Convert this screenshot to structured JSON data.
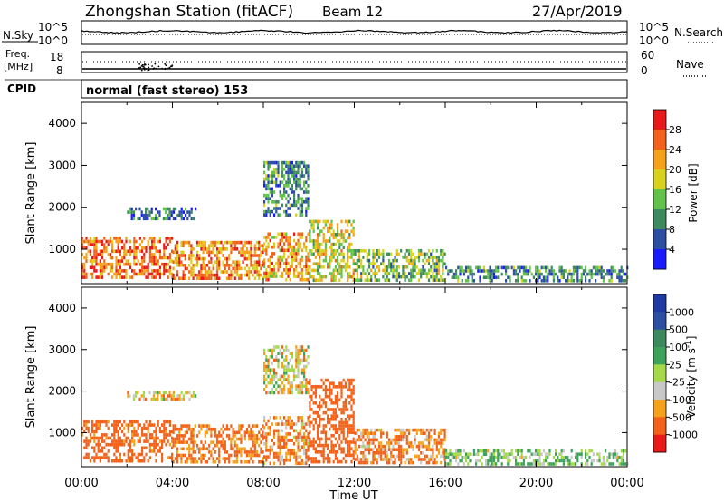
{
  "header": {
    "station": "Zhongshan Station (fitACF)",
    "beam": "Beam 12",
    "date": "27/Apr/2019"
  },
  "strip": {
    "nsky_label": "N.Sky",
    "nsky_top": "10^5",
    "nsky_bot": "10^0",
    "nsearch_label": "N.Search",
    "nsearch_top": "10^5",
    "nsearch_bot": "10^0",
    "freq_label": "Freq.",
    "freq_unit": "[MHz]",
    "freq_top": "18",
    "freq_bot": "8",
    "nave_label": "Nave",
    "nave_top": "60",
    "nave_bot": "0",
    "cpid_label": "CPID",
    "cpid_value": "normal (fast stereo) 153"
  },
  "colors": {
    "power": [
      "#1a1aff",
      "#2d4fa3",
      "#3d8a5e",
      "#62c24a",
      "#d9d21d",
      "#f5a21a",
      "#f2621a",
      "#e81a1a"
    ],
    "velocity": [
      "#e81a1a",
      "#f2621a",
      "#f5a21a",
      "#c8c8c8",
      "#a6d94a",
      "#3da35a",
      "#3d8a5e",
      "#2d4fa3",
      "#1e3aa0"
    ]
  },
  "chart_data": [
    {
      "type": "heatmap",
      "title": "Power",
      "ylabel": "Slant Range [km]",
      "xlabel": "",
      "xlim": [
        "00:00",
        "24:00"
      ],
      "ylim": [
        180,
        4500
      ],
      "y_ticks": [
        "1000",
        "2000",
        "3000",
        "4000"
      ],
      "colorbar": {
        "label": "Power [dB]",
        "ticks": [
          "4",
          "8",
          "12",
          "16",
          "20",
          "24",
          "28"
        ],
        "range": [
          0,
          32
        ]
      },
      "series": [
        {
          "values": [
            [
              0,
              4,
              300,
              1300,
              26
            ],
            [
              4,
              8,
              300,
              1200,
              24
            ],
            [
              8,
              10,
              300,
              1400,
              22
            ],
            [
              10,
              12,
              300,
              1700,
              18
            ],
            [
              12,
              16,
              300,
              1000,
              14
            ],
            [
              16,
              24,
              250,
              600,
              10
            ],
            [
              2,
              5,
              1700,
              2000,
              8
            ],
            [
              8,
              10,
              1800,
              3100,
              10
            ]
          ]
        }
      ]
    },
    {
      "type": "heatmap",
      "title": "Velocity",
      "ylabel": "Slant Range [km]",
      "xlabel": "Time UT",
      "x_ticks": [
        "00:00",
        "04:00",
        "08:00",
        "12:00",
        "16:00",
        "20:00",
        "00:00"
      ],
      "xlim": [
        "00:00",
        "24:00"
      ],
      "ylim": [
        180,
        4500
      ],
      "y_ticks": [
        "1000",
        "2000",
        "3000",
        "4000"
      ],
      "colorbar": {
        "label": "Velocity [m s^-1]",
        "ticks": [
          "1000",
          "500",
          "100",
          "25",
          "-25",
          "-100",
          "-500",
          "-1000"
        ]
      },
      "series": [
        {
          "values": [
            [
              0,
              4,
              300,
              1300,
              -200
            ],
            [
              4,
              8,
              300,
              1200,
              -150
            ],
            [
              8,
              10,
              300,
              1400,
              -100
            ],
            [
              10,
              12,
              300,
              2300,
              -300
            ],
            [
              12,
              16,
              300,
              1100,
              -100
            ],
            [
              16,
              24,
              250,
              600,
              100
            ],
            [
              2,
              5,
              1800,
              2000,
              0
            ],
            [
              8,
              10,
              2000,
              3100,
              0
            ]
          ]
        }
      ]
    }
  ]
}
